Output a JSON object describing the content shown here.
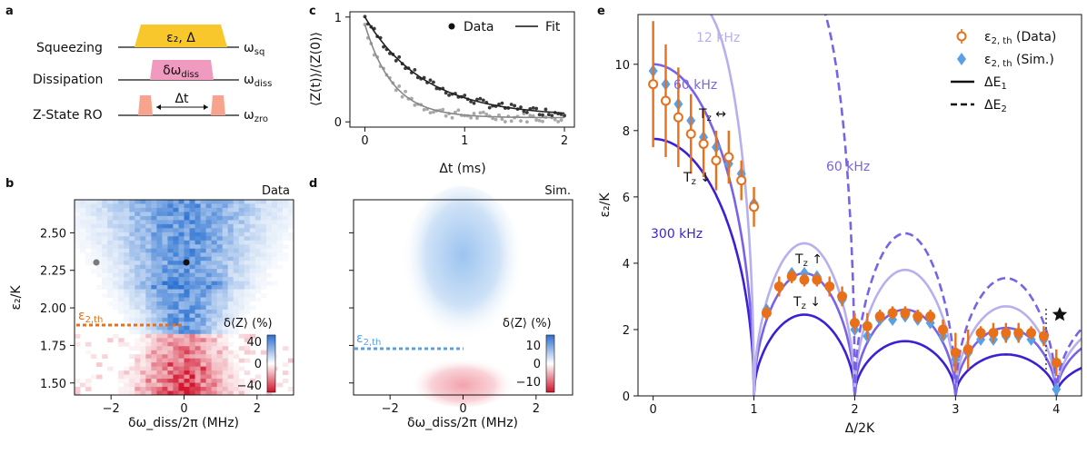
{
  "colors": {
    "accent_orange": "#e8701a",
    "accent_blue": "#5aa0e8",
    "squeeze_bar": "#f7c72c",
    "diss_bar": "#f19ac0",
    "ro_bar": "#f7a38d",
    "curve_12": "#b6b0ee",
    "curve_60": "#7a62e8",
    "curve_300": "#3d1fd6",
    "data_dark": "#3a3a3a",
    "data_light": "#a8a8a8"
  },
  "panel_a": {
    "label": "a",
    "rows": [
      {
        "name": "Squeezing",
        "box_text": "ε₂, Δ",
        "freq": "ω_sq"
      },
      {
        "name": "Dissipation",
        "box_text": "δω_diss",
        "freq": "ω_diss"
      },
      {
        "name": "Z-State RO",
        "box_text": "Δt",
        "freq": "ω_zro"
      }
    ]
  },
  "panel_b": {
    "label": "b",
    "corner": "Data",
    "xlabel": "δω_diss/2π (MHz)",
    "ylabel": "ε₂/K",
    "xticks": [
      "−2",
      "0",
      "2"
    ],
    "yticks": [
      "2.50",
      "2.25",
      "2.00",
      "1.75",
      "1.50"
    ],
    "threshold_label": "ε₂,th",
    "colorbar": {
      "title": "δ⟨Z⟩ (%)",
      "ticks": [
        "40",
        "0",
        "−40"
      ]
    }
  },
  "panel_c": {
    "label": "c",
    "xlabel": "Δt (ms)",
    "ylabel": "⟨Z(t)⟩/⟨Z(0)⟩",
    "xticks": [
      "0",
      "1",
      "2"
    ],
    "yticks": [
      "1",
      "0"
    ],
    "legend": {
      "data": "Data",
      "fit": "Fit"
    }
  },
  "panel_d": {
    "label": "d",
    "corner": "Sim.",
    "xlabel": "δω_diss/2π (MHz)",
    "xticks": [
      "−2",
      "0",
      "2"
    ],
    "threshold_label": "ε₂,th",
    "colorbar": {
      "title": "δ⟨Z⟩ (%)",
      "ticks": [
        "10",
        "0",
        "−10"
      ]
    }
  },
  "panel_e": {
    "label": "e",
    "xlabel": "Δ/2K",
    "ylabel": "ε₂/K",
    "xticks": [
      "0",
      "1",
      "2",
      "3",
      "4"
    ],
    "yticks": [
      "0",
      "2",
      "4",
      "6",
      "8",
      "10"
    ],
    "curve_labels": {
      "c12": "12 kHz",
      "c60": "60 kHz",
      "c60d": "60 kHz",
      "c300": "300 kHz"
    },
    "annotations": {
      "tz_lr": "T_z ↔",
      "tz_down1": "T_z ↓",
      "tz_up": "T_z ↑",
      "tz_down2": "T_z ↓"
    },
    "legend": {
      "data": "ε₂,th (Data)",
      "sim": "ε₂,th (Sim.)",
      "solid": "ΔE₁",
      "dashed": "ΔE₂"
    }
  },
  "chart_data": [
    {
      "type": "line",
      "title": "c",
      "xlabel": "Δt (ms)",
      "ylabel": "⟨Z(t)⟩/⟨Z(0)⟩",
      "xlim": [
        -0.15,
        2.1
      ],
      "ylim": [
        -0.05,
        1.05
      ],
      "series": [
        {
          "name": "Fit (dark)",
          "x": [
            0,
            0.25,
            0.5,
            0.75,
            1.0,
            1.25,
            1.5,
            1.75,
            2.0
          ],
          "values": [
            1.0,
            0.66,
            0.44,
            0.29,
            0.2,
            0.14,
            0.1,
            0.07,
            0.06
          ]
        },
        {
          "name": "Fit (light)",
          "x": [
            0,
            0.25,
            0.5,
            0.75,
            1.0,
            1.25,
            1.5,
            1.75,
            2.0
          ],
          "values": [
            0.93,
            0.43,
            0.2,
            0.1,
            0.06,
            0.04,
            0.04,
            0.04,
            0.04
          ]
        }
      ]
    },
    {
      "type": "scatter",
      "title": "e",
      "xlabel": "Δ/2K",
      "ylabel": "ε₂/K",
      "xlim": [
        -0.15,
        4.25
      ],
      "ylim": [
        0,
        11.5
      ],
      "series": [
        {
          "name": "ε₂,th (Data)",
          "x": [
            0,
            0.125,
            0.25,
            0.375,
            0.5,
            0.625,
            0.75,
            0.875,
            1.0,
            1.125,
            1.25,
            1.375,
            1.5,
            1.625,
            1.75,
            1.875,
            2.0,
            2.125,
            2.25,
            2.375,
            2.5,
            2.625,
            2.75,
            2.875,
            3.0,
            3.125,
            3.25,
            3.375,
            3.5,
            3.625,
            3.75,
            3.875,
            4.0
          ],
          "values": [
            9.4,
            8.9,
            8.4,
            7.9,
            7.6,
            7.1,
            7.2,
            6.5,
            5.7,
            2.5,
            3.3,
            3.6,
            3.5,
            3.5,
            3.3,
            3.0,
            2.2,
            2.1,
            2.4,
            2.5,
            2.5,
            2.4,
            2.4,
            2.0,
            1.3,
            1.4,
            1.9,
            1.9,
            1.9,
            1.9,
            1.9,
            1.8,
            1.0
          ]
        },
        {
          "name": "ε₂,th (Sim.)",
          "x": [
            0,
            0.125,
            0.25,
            0.375,
            0.5,
            0.625,
            0.75,
            0.875,
            1.0,
            1.125,
            1.25,
            1.375,
            1.5,
            1.625,
            1.75,
            1.875,
            2.0,
            2.125,
            2.25,
            2.375,
            2.5,
            2.625,
            2.75,
            2.875,
            3.0,
            3.125,
            3.25,
            3.375,
            3.5,
            3.625,
            3.75,
            3.875,
            4.0
          ],
          "values": [
            9.8,
            9.4,
            8.8,
            8.3,
            7.8,
            7.5,
            7.0,
            6.7,
            5.8,
            2.6,
            3.3,
            3.7,
            3.7,
            3.6,
            3.3,
            2.9,
            2.0,
            1.8,
            2.3,
            2.3,
            2.4,
            2.3,
            2.2,
            1.8,
            1.1,
            1.3,
            1.7,
            1.7,
            1.8,
            1.8,
            1.7,
            1.7,
            0.2
          ]
        }
      ]
    }
  ]
}
